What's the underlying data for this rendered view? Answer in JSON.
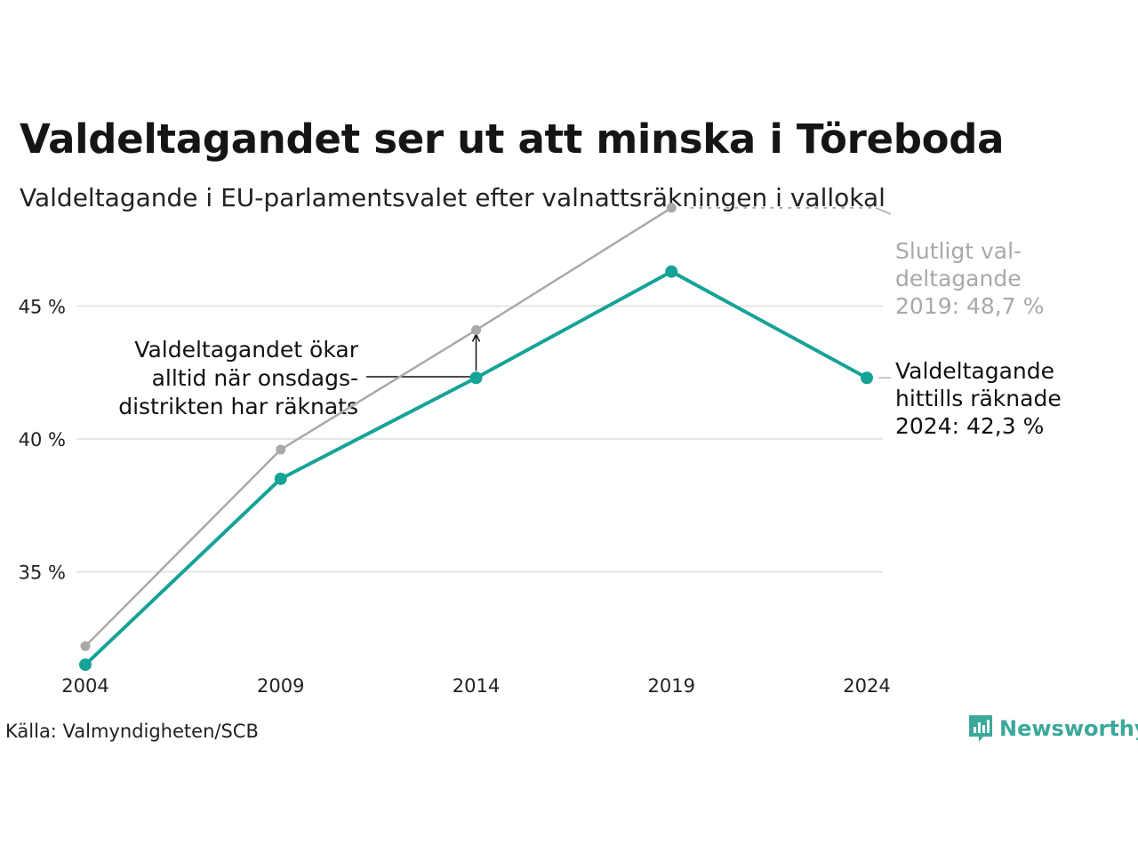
{
  "title": "Valdeltagandet ser ut att minska i Töreboda",
  "subtitle": "Valdeltagande i EU-parlamentsvalet efter valnattsräkningen i vallokal",
  "source": "Källa: Valmyndigheten/SCB",
  "brand": {
    "name": "Newsworthy",
    "icon": "newsworthy-logo-icon",
    "color": "#3aa89a"
  },
  "chart_data": {
    "type": "line",
    "x": [
      2004,
      2009,
      2014,
      2019,
      2024
    ],
    "xtick_labels": [
      "2004",
      "2009",
      "2014",
      "2019",
      "2024"
    ],
    "yticks": [
      35,
      40,
      45
    ],
    "ytick_labels": [
      "35 %",
      "40 %",
      "45 %"
    ],
    "ylim": [
      30.5,
      49.5
    ],
    "grid": true,
    "series": [
      {
        "key": "final",
        "values": [
          32.2,
          39.6,
          44.1,
          48.7,
          null
        ],
        "color": "#a9a9a9"
      },
      {
        "key": "preliminary",
        "values": [
          31.5,
          38.5,
          42.3,
          46.3,
          42.3
        ],
        "color": "#16a397"
      }
    ],
    "annotations": {
      "final_2019": [
        "Slutligt val-",
        "deltagande",
        "2019: 48,7 %"
      ],
      "current_2024": [
        "Valdeltagande",
        "hittills räknade",
        "2024: 42,3 %"
      ],
      "wednesday_note": [
        "Valdeltagandet ökar",
        "alltid när onsdags-",
        "distrikten har räknats"
      ]
    }
  }
}
